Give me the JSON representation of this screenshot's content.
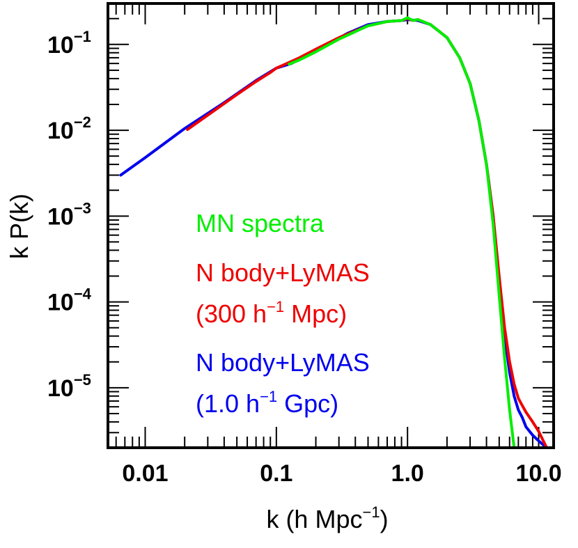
{
  "chart_data": {
    "type": "line",
    "xlabel": {
      "main": "k (h Mpc",
      "sup": "−1",
      "close": ")"
    },
    "ylabel": "k P(k)",
    "xscale": "log",
    "yscale": "log",
    "xlim": [
      0.0052,
      13.0
    ],
    "ylim": [
      2e-06,
      0.3
    ],
    "grid": false,
    "xticks": [
      {
        "value": 0.01,
        "label": "0.01"
      },
      {
        "value": 0.1,
        "label": "0.1"
      },
      {
        "value": 1.0,
        "label": "1.0"
      },
      {
        "value": 10.0,
        "label": "10.0"
      }
    ],
    "yticks": [
      {
        "value": 1e-05,
        "base": "10",
        "exp": "−5"
      },
      {
        "value": 0.0001,
        "base": "10",
        "exp": "−4"
      },
      {
        "value": 0.001,
        "base": "10",
        "exp": "−3"
      },
      {
        "value": 0.01,
        "base": "10",
        "exp": "−2"
      },
      {
        "value": 0.1,
        "base": "10",
        "exp": "−1"
      }
    ],
    "legend": [
      {
        "lines": [
          {
            "text": "MN spectra"
          }
        ],
        "color": "#00ee00"
      },
      {
        "lines": [
          {
            "text": "N body+LyMAS"
          },
          {
            "pre": "(300 h",
            "sup": "−1",
            "post": " Mpc)"
          }
        ],
        "color": "#ee0000"
      },
      {
        "lines": [
          {
            "text": "N body+LyMAS"
          },
          {
            "pre": "(1.0 h",
            "sup": "−1",
            "post": " Gpc)"
          }
        ],
        "color": "#0000ee"
      }
    ],
    "series": [
      {
        "color": "#0000ee",
        "x": [
          0.0065,
          0.01,
          0.02,
          0.04,
          0.07,
          0.1,
          0.13,
          0.2,
          0.35,
          0.5,
          0.7,
          0.9,
          1.0,
          1.2,
          1.5,
          2.0,
          2.5,
          3.0,
          3.5,
          4.0,
          4.5,
          5.0,
          5.5,
          6.0,
          6.5,
          7.0,
          7.5,
          8.0,
          9.0,
          10.0,
          11.5
        ],
        "y": [
          0.003,
          0.0048,
          0.0105,
          0.021,
          0.038,
          0.053,
          0.06,
          0.085,
          0.135,
          0.17,
          0.185,
          0.19,
          0.195,
          0.19,
          0.17,
          0.12,
          0.07,
          0.035,
          0.013,
          0.004,
          0.001,
          0.00018,
          4e-05,
          1.5e-05,
          8e-06,
          5.5e-06,
          4.5e-06,
          3.5e-06,
          2.8e-06,
          2.4e-06,
          2e-06
        ]
      },
      {
        "color": "#ee0000",
        "x": [
          0.021,
          0.03,
          0.05,
          0.07,
          0.09,
          0.1,
          0.12,
          0.15,
          0.2,
          0.3,
          0.5,
          0.7,
          0.9,
          1.0,
          1.1,
          1.2,
          1.5,
          2.0,
          2.5,
          3.0,
          3.5,
          4.0,
          4.5,
          5.0,
          5.5,
          6.0,
          6.5,
          7.0,
          7.5,
          8.0,
          9.0,
          10.0,
          11.5
        ],
        "y": [
          0.0102,
          0.015,
          0.026,
          0.037,
          0.047,
          0.053,
          0.06,
          0.07,
          0.088,
          0.12,
          0.165,
          0.185,
          0.19,
          0.2,
          0.19,
          0.195,
          0.17,
          0.12,
          0.07,
          0.035,
          0.013,
          0.004,
          0.001,
          0.0002,
          5e-05,
          2e-05,
          1.1e-05,
          7.5e-06,
          6.2e-06,
          5.2e-06,
          4e-06,
          3.1e-06,
          2e-06
        ]
      },
      {
        "color": "#00ee00",
        "x": [
          0.125,
          0.15,
          0.2,
          0.3,
          0.5,
          0.7,
          0.9,
          1.0,
          1.1,
          1.2,
          1.5,
          2.0,
          2.5,
          3.0,
          3.5,
          4.0,
          4.5,
          5.0,
          5.5,
          6.0,
          6.5
        ],
        "y": [
          0.059,
          0.066,
          0.082,
          0.115,
          0.165,
          0.185,
          0.19,
          0.205,
          0.19,
          0.195,
          0.17,
          0.12,
          0.07,
          0.035,
          0.013,
          0.004,
          0.0008,
          0.00012,
          2.2e-05,
          5.5e-06,
          2e-06
        ]
      }
    ]
  }
}
